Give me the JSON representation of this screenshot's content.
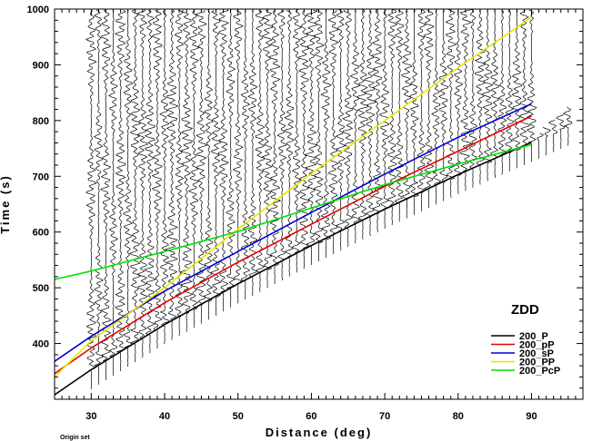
{
  "chart_data": {
    "type": "line",
    "title": "",
    "xlabel": "Distance (deg)",
    "ylabel": "Time (s)",
    "xlim": [
      25,
      97
    ],
    "ylim": [
      300,
      1000
    ],
    "x_ticks": [
      30,
      40,
      50,
      60,
      70,
      80,
      90
    ],
    "y_ticks": [
      400,
      500,
      600,
      700,
      800,
      900,
      1000
    ],
    "annotation": "ZDD",
    "footnote": "Origin set",
    "legend_position": "right",
    "traces": {
      "distance_start": 30,
      "distance_end": 95,
      "count": 66,
      "color": "#000000"
    },
    "series": [
      {
        "name": "200_P",
        "color": "#000000",
        "x": [
          25,
          30,
          40,
          50,
          60,
          70,
          80,
          90
        ],
        "y": [
          308,
          353,
          434,
          507,
          576,
          641,
          703,
          761
        ]
      },
      {
        "name": "200_pP",
        "color": "#e60000",
        "x": [
          25,
          30,
          40,
          50,
          60,
          70,
          80,
          90
        ],
        "y": [
          346,
          392,
          473,
          546,
          614,
          682,
          745,
          808
        ]
      },
      {
        "name": "200_sP",
        "color": "#0000d0",
        "x": [
          25,
          30,
          40,
          50,
          60,
          70,
          80,
          90
        ],
        "y": [
          368,
          413,
          494,
          565,
          635,
          704,
          770,
          830
        ]
      },
      {
        "name": "200_PP",
        "color": "#e6e600",
        "x": [
          25,
          30,
          40,
          50,
          60,
          70,
          80,
          90
        ],
        "y": [
          340,
          405,
          500,
          605,
          705,
          800,
          895,
          985
        ]
      },
      {
        "name": "200_PcP",
        "color": "#00e000",
        "x": [
          25,
          30,
          40,
          50,
          60,
          70,
          80,
          90
        ],
        "y": [
          515,
          530,
          565,
          601,
          643,
          685,
          722,
          757
        ]
      }
    ]
  }
}
